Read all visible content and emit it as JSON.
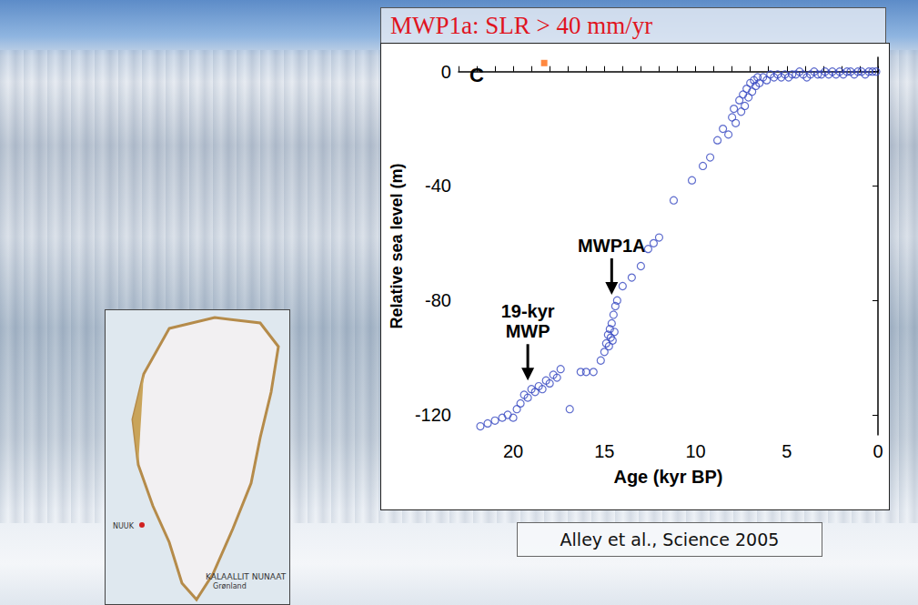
{
  "slide": {
    "title": "MWP1a: SLR > 40 mm/yr",
    "citation": "Alley et al., Science 2005",
    "map": {
      "labels": [
        "KALAALLIT NUNAAT",
        "Grønland",
        "NUUK"
      ]
    }
  },
  "chart_data": {
    "type": "scatter",
    "panel_label": "C",
    "x_label": "Age (kyr BP)",
    "y_label": "Relative sea level (m)",
    "xlim": [
      23,
      0
    ],
    "xticks": [
      20,
      15,
      10,
      5,
      0
    ],
    "ylim": [
      -127,
      5
    ],
    "yticks": [
      0,
      -40,
      -80,
      -120
    ],
    "grid": false,
    "series": [
      {
        "color": "#3446c0",
        "marker": "circle-open",
        "x": [
          21.8,
          21.4,
          21.0,
          20.6,
          20.3,
          20.0,
          19.8,
          19.6,
          19.4,
          19.2,
          19.0,
          18.8,
          18.6,
          18.4,
          18.2,
          18.0,
          17.8,
          17.6,
          17.4,
          16.9,
          16.3,
          16.0,
          15.6,
          15.2,
          15.0,
          14.9,
          14.8,
          14.75,
          14.7,
          14.65,
          14.6,
          14.55,
          14.5,
          14.45,
          14.4,
          14.3,
          14.0,
          13.5,
          13.0,
          12.6,
          12.3,
          12.0,
          11.2,
          10.2,
          9.6,
          9.2,
          8.8,
          8.5,
          8.2,
          8.0,
          7.9,
          7.8,
          7.6,
          7.5,
          7.4,
          7.3,
          7.2,
          7.1,
          7.0,
          6.9,
          6.8,
          6.7,
          6.6,
          6.5,
          6.3,
          6.1,
          5.9,
          5.7,
          5.5,
          5.3,
          5.1,
          4.9,
          4.7,
          4.5,
          4.3,
          4.1,
          3.9,
          3.7,
          3.5,
          3.3,
          3.1,
          2.9,
          2.7,
          2.5,
          2.3,
          2.1,
          1.9,
          1.7,
          1.5,
          1.3,
          1.1,
          0.9,
          0.7,
          0.5,
          0.3,
          0.1
        ],
        "values": [
          -124,
          -123,
          -122,
          -121,
          -120,
          -121,
          -118,
          -116,
          -113,
          -114,
          -111,
          -112,
          -110,
          -111,
          -108,
          -109,
          -106,
          -107,
          -104,
          -118,
          -105,
          -105,
          -105,
          -101,
          -98,
          -95,
          -92,
          -96,
          -90,
          -93,
          -88,
          -94,
          -85,
          -91,
          -82,
          -80,
          -75,
          -72,
          -68,
          -62,
          -60,
          -58,
          -45,
          -38,
          -33,
          -30,
          -24,
          -20,
          -22,
          -16,
          -13,
          -18,
          -10,
          -14,
          -8,
          -12,
          -6,
          -9,
          -4,
          -7,
          -3,
          -5,
          -2,
          -4,
          -2,
          -3,
          -1,
          -2,
          -1,
          -2,
          -1,
          -2,
          -1,
          -1,
          0,
          -1,
          -2,
          -1,
          0,
          -1,
          -1,
          0,
          -1,
          0,
          -1,
          0,
          -1,
          0,
          0,
          -1,
          0,
          0,
          -1,
          0,
          0,
          0
        ]
      },
      {
        "color": "#ff6a10",
        "marker": "square",
        "x": [
          18.3
        ],
        "values": [
          3
        ]
      }
    ],
    "annotations": [
      {
        "text": "MWP1A",
        "x": 14.6,
        "y": -78
      },
      {
        "text": "19-kyr\nMWP",
        "x": 19.2,
        "y": -108
      }
    ]
  }
}
